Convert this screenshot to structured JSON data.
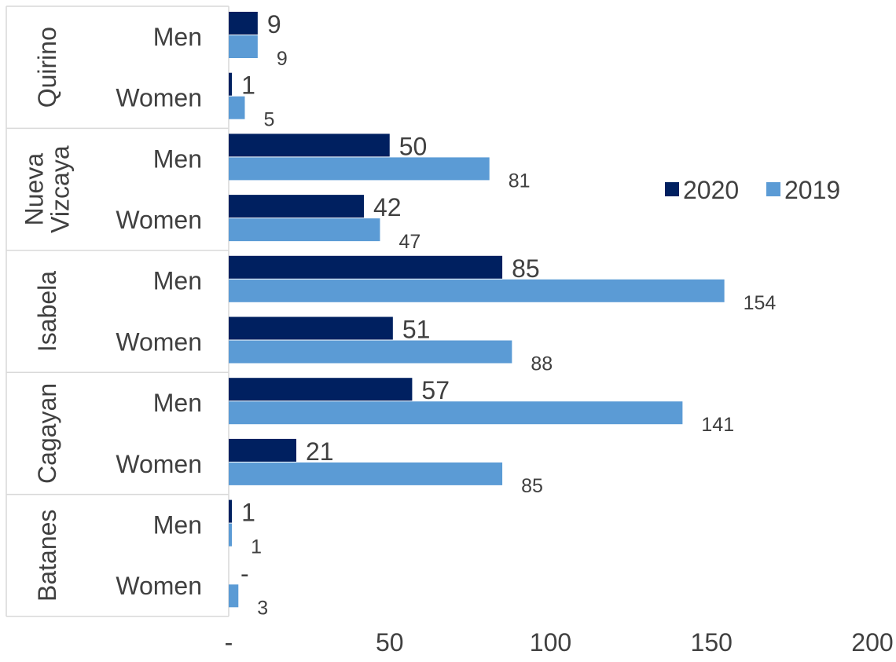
{
  "chart_data": {
    "type": "bar",
    "orientation": "horizontal",
    "grid": false,
    "legend": {
      "placement": "right",
      "entries": [
        "2020",
        "2019"
      ]
    },
    "xlim": [
      0,
      200
    ],
    "x_ticks": [
      "-",
      "50",
      "100",
      "150",
      "200"
    ],
    "colors": {
      "2020": "#002060",
      "2019": "#5B9BD5"
    },
    "groups": [
      {
        "name": "Quirino",
        "label_lines": [
          "Quirino"
        ],
        "rows": [
          {
            "category": "Men",
            "v2020": 9,
            "v2019": 9,
            "label2020": "9",
            "label2019": "9"
          },
          {
            "category": "Women",
            "v2020": 1,
            "v2019": 5,
            "label2020": "1",
            "label2019": "5"
          }
        ]
      },
      {
        "name": "Nueva Vizcaya",
        "label_lines": [
          "Nueva",
          "Vizcaya"
        ],
        "rows": [
          {
            "category": "Men",
            "v2020": 50,
            "v2019": 81,
            "label2020": "50",
            "label2019": "81"
          },
          {
            "category": "Women",
            "v2020": 42,
            "v2019": 47,
            "label2020": "42",
            "label2019": "47"
          }
        ]
      },
      {
        "name": "Isabela",
        "label_lines": [
          "Isabela"
        ],
        "rows": [
          {
            "category": "Men",
            "v2020": 85,
            "v2019": 154,
            "label2020": "85",
            "label2019": "154"
          },
          {
            "category": "Women",
            "v2020": 51,
            "v2019": 88,
            "label2020": "51",
            "label2019": "88"
          }
        ]
      },
      {
        "name": "Cagayan",
        "label_lines": [
          "Cagayan"
        ],
        "rows": [
          {
            "category": "Men",
            "v2020": 57,
            "v2019": 141,
            "label2020": "57",
            "label2019": "141"
          },
          {
            "category": "Women",
            "v2020": 21,
            "v2019": 85,
            "label2020": "21",
            "label2019": "85"
          }
        ]
      },
      {
        "name": "Batanes",
        "label_lines": [
          "Batanes"
        ],
        "rows": [
          {
            "category": "Men",
            "v2020": 1,
            "v2019": 1,
            "label2020": "1",
            "label2019": "1"
          },
          {
            "category": "Women",
            "v2020": 0,
            "v2019": 3,
            "label2020": "-",
            "label2019": "3"
          }
        ]
      }
    ]
  }
}
